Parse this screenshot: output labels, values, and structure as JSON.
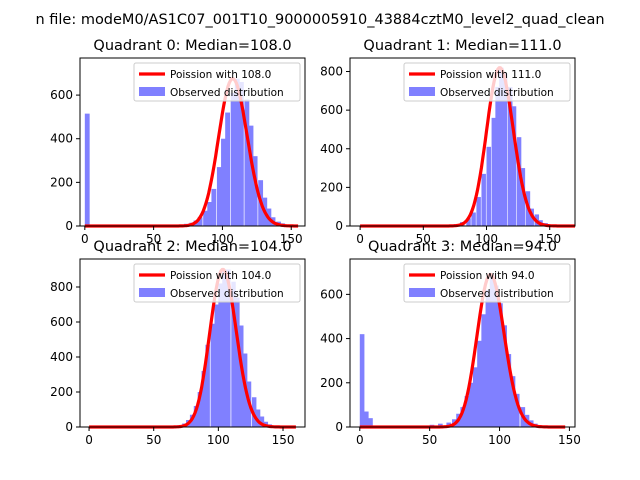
{
  "figure": {
    "title": "n file: modeM0/AS1C07_001T10_9000005910_43884cztM0_level2_quad_clean"
  },
  "colors": {
    "hist": "#8080ff",
    "fit": "#ff0000"
  },
  "chart_data": [
    {
      "type": "bar+line",
      "title": "Quadrant 0: Median=108.0",
      "xlim": [
        -3.5,
        160
      ],
      "ylim": [
        0,
        770
      ],
      "xticks": [
        0,
        50,
        100,
        150
      ],
      "yticks": [
        0,
        200,
        400,
        600
      ],
      "bin_width": 3.3,
      "hist": {
        "name": "Observed distribution",
        "bins": [
          [
            0,
            515
          ],
          [
            72,
            10
          ],
          [
            76,
            15
          ],
          [
            79,
            25
          ],
          [
            82,
            40
          ],
          [
            86,
            70
          ],
          [
            89,
            110
          ],
          [
            92,
            170
          ],
          [
            96,
            270
          ],
          [
            99,
            400
          ],
          [
            102,
            520
          ],
          [
            106,
            610
          ],
          [
            109,
            675
          ],
          [
            112,
            660
          ],
          [
            116,
            580
          ],
          [
            119,
            460
          ],
          [
            122,
            320
          ],
          [
            126,
            210
          ],
          [
            129,
            130
          ],
          [
            132,
            80
          ],
          [
            135,
            40
          ],
          [
            139,
            20
          ],
          [
            142,
            12
          ],
          [
            146,
            5
          ]
        ]
      },
      "fit": {
        "name": "Poission with 108.0",
        "mu": 108.0,
        "x_range": [
          0,
          155
        ]
      }
    },
    {
      "type": "bar+line",
      "title": "Quadrant 1: Median=111.0",
      "xlim": [
        -8,
        170
      ],
      "ylim": [
        0,
        870
      ],
      "xticks": [
        0,
        50,
        100,
        150
      ],
      "yticks": [
        0,
        200,
        400,
        600,
        800
      ],
      "bin_width": 3.3,
      "hist": {
        "name": "Observed distribution",
        "bins": [
          [
            74,
            10
          ],
          [
            79,
            20
          ],
          [
            84,
            40
          ],
          [
            88,
            70
          ],
          [
            92,
            150
          ],
          [
            96,
            270
          ],
          [
            100,
            410
          ],
          [
            104,
            560
          ],
          [
            107,
            720
          ],
          [
            110,
            820
          ],
          [
            113,
            790
          ],
          [
            117,
            720
          ],
          [
            120,
            620
          ],
          [
            124,
            460
          ],
          [
            127,
            300
          ],
          [
            131,
            180
          ],
          [
            134,
            90
          ],
          [
            138,
            60
          ],
          [
            141,
            30
          ],
          [
            145,
            15
          ],
          [
            149,
            5
          ]
        ]
      },
      "fit": {
        "name": "Poission with 111.0",
        "mu": 111.0,
        "x_range": [
          0,
          170
        ]
      }
    },
    {
      "type": "bar+line",
      "title": "Quadrant 2: Median=104.0",
      "xlim": [
        -7,
        167
      ],
      "ylim": [
        0,
        960
      ],
      "xticks": [
        0,
        50,
        100,
        150
      ],
      "yticks": [
        0,
        200,
        400,
        600,
        800
      ],
      "bin_width": 3.2,
      "hist": {
        "name": "Observed distribution",
        "bins": [
          [
            68,
            10
          ],
          [
            72,
            20
          ],
          [
            75,
            40
          ],
          [
            78,
            70
          ],
          [
            81,
            120
          ],
          [
            84,
            200
          ],
          [
            87,
            320
          ],
          [
            90,
            470
          ],
          [
            94,
            590
          ],
          [
            97,
            700
          ],
          [
            100,
            820
          ],
          [
            103,
            900
          ],
          [
            106,
            900
          ],
          [
            110,
            830
          ],
          [
            113,
            740
          ],
          [
            116,
            580
          ],
          [
            119,
            420
          ],
          [
            122,
            260
          ],
          [
            126,
            170
          ],
          [
            129,
            100
          ],
          [
            132,
            60
          ],
          [
            135,
            30
          ],
          [
            138,
            15
          ],
          [
            142,
            8
          ]
        ]
      },
      "fit": {
        "name": "Poission with 104.0",
        "mu": 104.0,
        "x_range": [
          0,
          160
        ]
      }
    },
    {
      "type": "bar+line",
      "title": "Quadrant 3: Median=94.0",
      "xlim": [
        -7,
        154
      ],
      "ylim": [
        0,
        760
      ],
      "xticks": [
        0,
        50,
        100,
        150
      ],
      "yticks": [
        0,
        200,
        400,
        600
      ],
      "bin_width": 3.1,
      "hist": {
        "name": "Observed distribution",
        "bins": [
          [
            0,
            420
          ],
          [
            3,
            70
          ],
          [
            6,
            40
          ],
          [
            50,
            10
          ],
          [
            56,
            15
          ],
          [
            62,
            20
          ],
          [
            66,
            35
          ],
          [
            69,
            60
          ],
          [
            72,
            90
          ],
          [
            75,
            140
          ],
          [
            78,
            200
          ],
          [
            81,
            270
          ],
          [
            84,
            390
          ],
          [
            87,
            510
          ],
          [
            90,
            620
          ],
          [
            93,
            690
          ],
          [
            96,
            640
          ],
          [
            99,
            560
          ],
          [
            102,
            460
          ],
          [
            105,
            330
          ],
          [
            108,
            230
          ],
          [
            111,
            150
          ],
          [
            115,
            90
          ],
          [
            118,
            55
          ],
          [
            121,
            30
          ],
          [
            124,
            15
          ],
          [
            127,
            8
          ]
        ]
      },
      "fit": {
        "name": "Poission with 94.0",
        "mu": 94.0,
        "x_range": [
          0,
          147
        ]
      }
    }
  ]
}
